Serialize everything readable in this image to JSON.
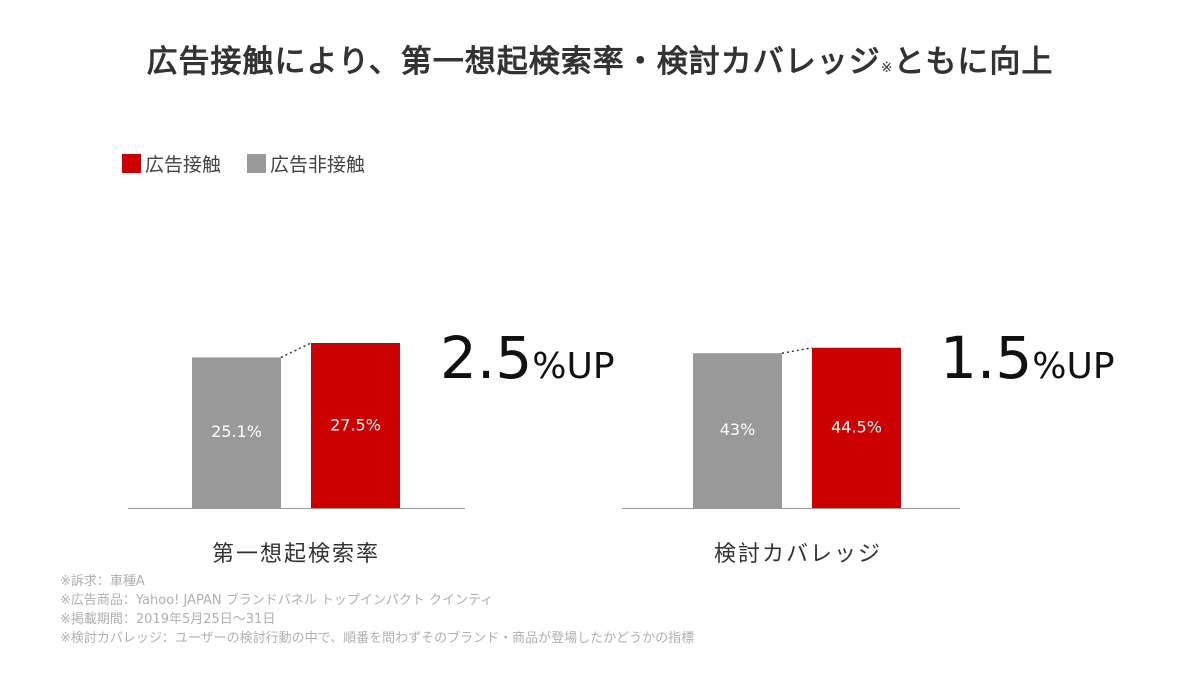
{
  "title": "広告接触により、第一想起検索率・検討カバレッジ",
  "title_mark": "※",
  "title_tail": "ともに向上",
  "colors": {
    "exposed": "#cc0000",
    "unexposed": "#999999",
    "axis": "#999999"
  },
  "chart_data": {
    "type": "bar",
    "series": [
      {
        "name": "広告非接触",
        "color": "#999999"
      },
      {
        "name": "広告接触",
        "color": "#cc0000"
      }
    ],
    "groups": [
      {
        "category": "第一想起検索率",
        "values": [
          25.1,
          27.5
        ],
        "labels": [
          "25.1%",
          "27.5%"
        ],
        "ylim": [
          0,
          60
        ]
      },
      {
        "category": "検討カバレッジ",
        "values": [
          43,
          44.5
        ],
        "labels": [
          "43%",
          "44.5%"
        ],
        "ylim": [
          0,
          100
        ]
      }
    ],
    "legend_position": "top-left",
    "legend": [
      {
        "label": "広告接触",
        "color": "#cc0000"
      },
      {
        "label": "広告非接触",
        "color": "#999999"
      }
    ]
  },
  "uplift": [
    {
      "value": "2.5",
      "unit": "%",
      "suffix": "UP"
    },
    {
      "value": "1.5",
      "unit": "%",
      "suffix": "UP"
    }
  ],
  "notes": [
    "※訴求：車種A",
    "※広告商品：Yahoo! JAPAN ブランドパネル トップインパクト クインティ",
    "※掲載期間：2019年5月25日〜31日",
    "※検討カバレッジ：ユーザーの検討行動の中で、順番を問わずそのブランド・商品が登場したかどうかの指標"
  ]
}
